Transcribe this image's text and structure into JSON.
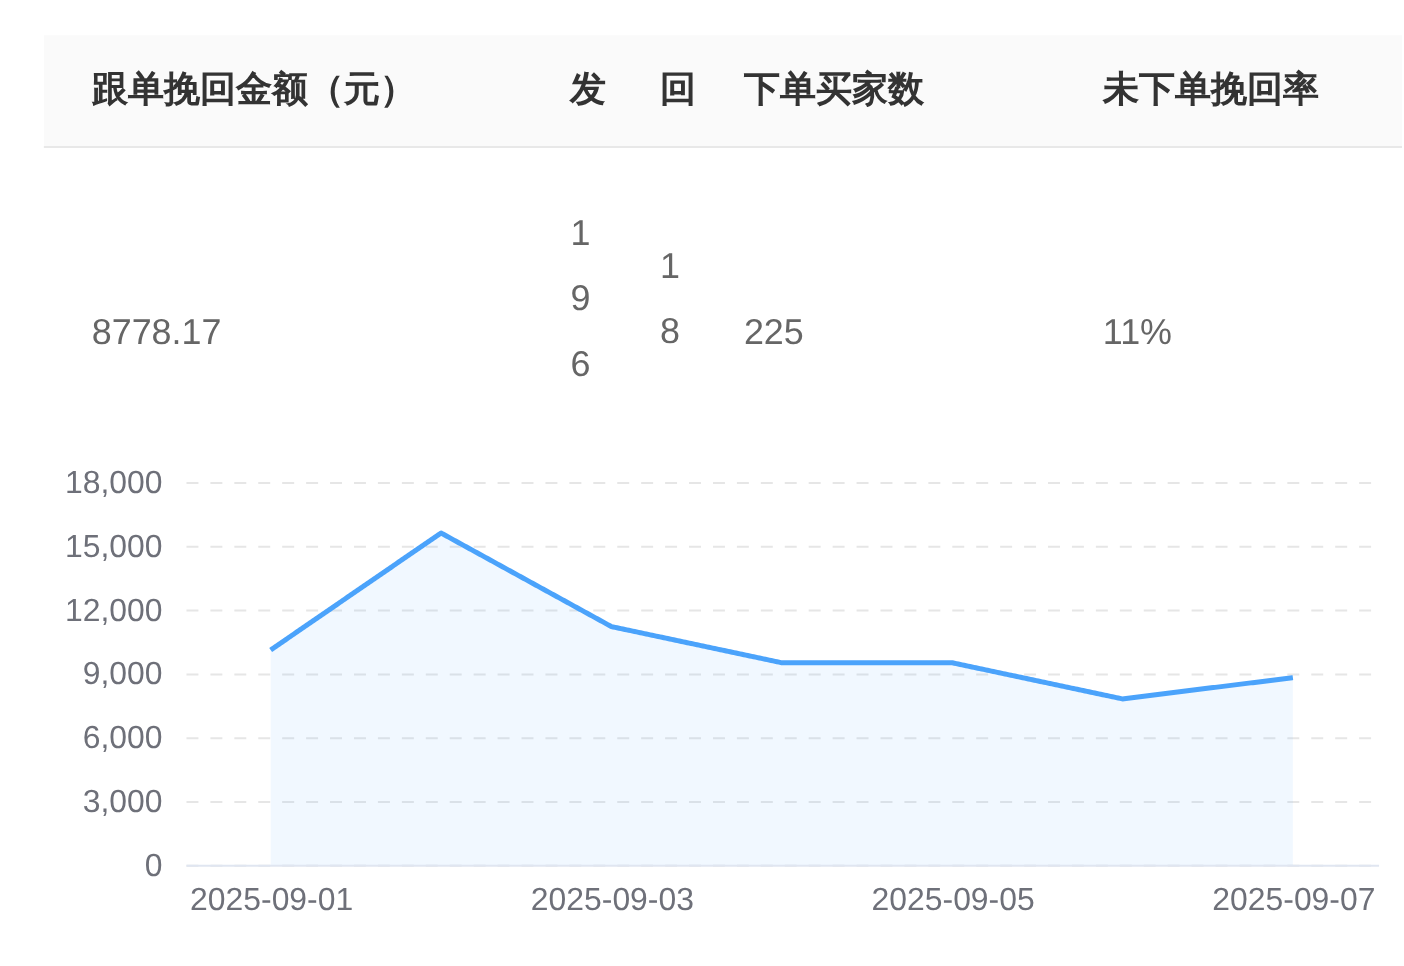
{
  "chart_data": [
    {
      "type": "other",
      "categories": [
        "跟单挽回金额（元）",
        "发",
        "回",
        "下单买家数",
        "未下单挽回率"
      ],
      "annotations": [
        "8778.17",
        "196",
        "18",
        "225",
        "11%"
      ]
    },
    {
      "type": "area",
      "categories": [
        "2025-09-01",
        null,
        "2025-09-03",
        null,
        "2025-09-05",
        null,
        "2025-09-07"
      ],
      "series": [
        {
          "color": "#4ba3fb",
          "values": [
            10100,
            15600,
            11200,
            9500,
            9500,
            7800,
            8800
          ]
        }
      ],
      "ylim": [
        0,
        18000
      ],
      "yticks": [
        0,
        {
          "value": 3000,
          "label": "3,000"
        },
        {
          "value": 6000,
          "label": "6,000"
        },
        {
          "value": 9000,
          "label": "9,000"
        },
        {
          "value": 12000,
          "label": "12,000"
        },
        {
          "value": 15000,
          "label": "15,000"
        },
        {
          "value": 18000,
          "label": "18,000"
        }
      ],
      "grid": "y"
    }
  ]
}
